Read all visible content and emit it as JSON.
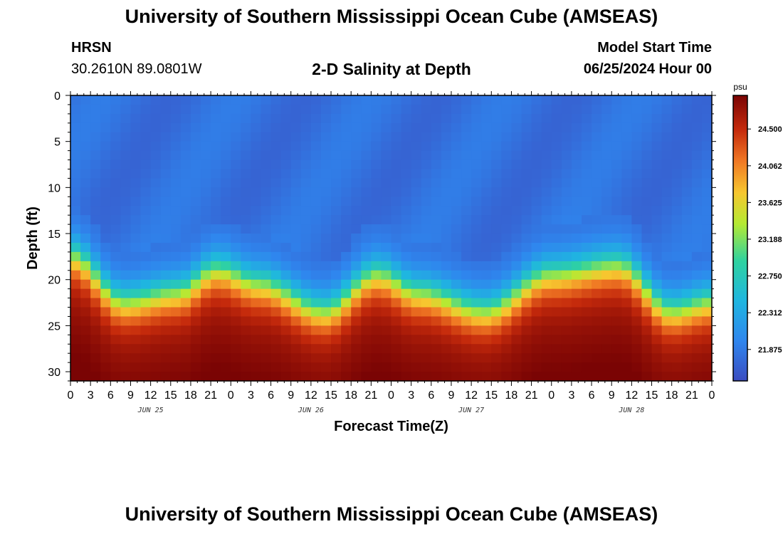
{
  "header": {
    "main_title": "University of Southern Mississippi Ocean Cube (AMSEAS)",
    "station_name": "HRSN",
    "coordinates": "30.2610N  89.0801W",
    "plot_title": "2-D Salinity at Depth",
    "model_start_label": "Model Start Time",
    "model_start_value": "06/25/2024 Hour 00",
    "bottom_title": "University of Southern Mississippi Ocean Cube (AMSEAS)"
  },
  "chart_data": {
    "type": "heatmap",
    "title": "2-D Salinity at Depth",
    "xlabel": "Forecast Time(Z)",
    "ylabel": "Depth (ft)",
    "x_range_hours": [
      0,
      96
    ],
    "y_range_ft": [
      0,
      31
    ],
    "y_ticks": [
      0,
      5,
      10,
      15,
      20,
      25,
      30
    ],
    "x_tick_labels": [
      "0",
      "3",
      "6",
      "9",
      "12",
      "15",
      "18",
      "21",
      "0",
      "3",
      "6",
      "9",
      "12",
      "15",
      "18",
      "21",
      "0",
      "3",
      "6",
      "9",
      "12",
      "15",
      "18",
      "21",
      "0",
      "3",
      "6",
      "9",
      "12",
      "15",
      "18",
      "21",
      "0"
    ],
    "date_labels": [
      {
        "label": "JUN 25",
        "hour": 12
      },
      {
        "label": "JUN 26",
        "hour": 36
      },
      {
        "label": "JUN 27",
        "hour": 60
      },
      {
        "label": "JUN 28",
        "hour": 84
      }
    ],
    "colorbar": {
      "unit": "psu",
      "min": 21.5,
      "max": 24.9,
      "ticks": [
        "24.500",
        "24.062",
        "23.625",
        "23.188",
        "22.750",
        "22.312",
        "21.875"
      ]
    },
    "grid": false,
    "halocline_depth_ft_by_hour": [
      {
        "hour": 0,
        "depth": 15
      },
      {
        "hour": 8,
        "depth": 20
      },
      {
        "hour": 16,
        "depth": 19
      },
      {
        "hour": 22,
        "depth": 16.5
      },
      {
        "hour": 28,
        "depth": 18
      },
      {
        "hour": 38,
        "depth": 21
      },
      {
        "hour": 46,
        "depth": 17
      },
      {
        "hour": 52,
        "depth": 19
      },
      {
        "hour": 62,
        "depth": 21
      },
      {
        "hour": 72,
        "depth": 17
      },
      {
        "hour": 82,
        "depth": 16
      },
      {
        "hour": 90,
        "depth": 21
      },
      {
        "hour": 96,
        "depth": 20
      }
    ],
    "surface_salinity_psu": 21.8,
    "bottom_salinity_psu": 24.7
  }
}
